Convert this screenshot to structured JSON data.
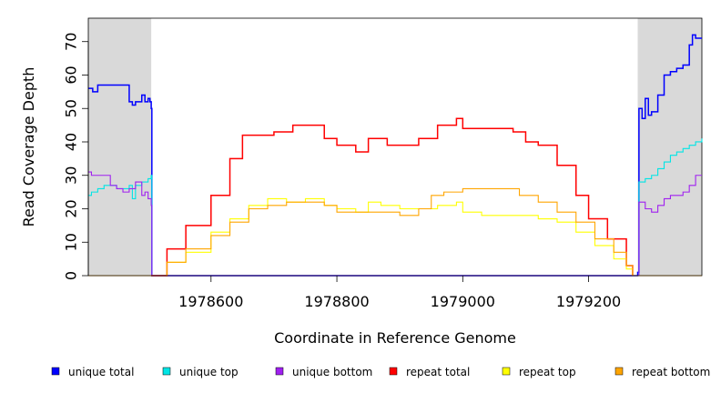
{
  "chart_data": {
    "type": "line",
    "xlabel": "Coordinate in Reference Genome",
    "ylabel": "Read Coverage Depth",
    "xlim": [
      1978405,
      1979380
    ],
    "ylim": [
      0,
      77
    ],
    "x_ticks": [
      1978600,
      1978800,
      1979000,
      1979200
    ],
    "x_tick_labels": [
      "1978600",
      "1978800",
      "1979000",
      "1979200"
    ],
    "y_ticks": [
      0,
      10,
      20,
      30,
      40,
      50,
      60,
      70
    ],
    "y_tick_labels": [
      "0",
      "10",
      "20",
      "30",
      "40",
      "50",
      "60",
      "70"
    ],
    "shaded_regions": [
      [
        1978405,
        1978505
      ],
      [
        1979278,
        1979380
      ]
    ],
    "shade_color": "#d9d9d9",
    "legend_position": "bottom",
    "series": [
      {
        "name": "unique total",
        "color": "#0000ff",
        "x": [
          1978405,
          1978412,
          1978420,
          1978440,
          1978460,
          1978470,
          1978475,
          1978480,
          1978490,
          1978495,
          1978500,
          1978503,
          1978505,
          1978506,
          1979270,
          1979278,
          1979280,
          1979285,
          1979290,
          1979295,
          1979300,
          1979310,
          1979320,
          1979330,
          1979340,
          1979350,
          1979360,
          1979365,
          1979370,
          1979380
        ],
        "y": [
          56,
          55,
          57,
          57,
          57,
          52,
          51,
          52,
          54,
          52,
          53,
          52,
          50,
          0,
          0,
          1,
          50,
          47,
          53,
          48,
          49,
          54,
          60,
          61,
          62,
          63,
          69,
          72,
          71,
          71
        ]
      },
      {
        "name": "unique top",
        "color": "#00e5e5",
        "x": [
          1978405,
          1978410,
          1978420,
          1978430,
          1978440,
          1978450,
          1978460,
          1978470,
          1978475,
          1978480,
          1978490,
          1978500,
          1978505,
          1978506,
          1979270,
          1979278,
          1979280,
          1979290,
          1979300,
          1979310,
          1979320,
          1979330,
          1979340,
          1979350,
          1979360,
          1979370,
          1979380
        ],
        "y": [
          24,
          25,
          26,
          27,
          27,
          26,
          26,
          27,
          23,
          27,
          28,
          29,
          30,
          0,
          0,
          0,
          28,
          29,
          30,
          32,
          34,
          36,
          37,
          38,
          39,
          40,
          41
        ]
      },
      {
        "name": "unique bottom",
        "color": "#a020f0",
        "x": [
          1978405,
          1978410,
          1978420,
          1978430,
          1978440,
          1978450,
          1978460,
          1978470,
          1978480,
          1978490,
          1978495,
          1978500,
          1978505,
          1978506,
          1979270,
          1979278,
          1979280,
          1979290,
          1979300,
          1979310,
          1979320,
          1979330,
          1979340,
          1979350,
          1979360,
          1979370,
          1979380
        ],
        "y": [
          31,
          30,
          30,
          30,
          27,
          26,
          25,
          26,
          28,
          24,
          25,
          23,
          21,
          0,
          0,
          0,
          22,
          20,
          19,
          21,
          23,
          24,
          24,
          25,
          27,
          30,
          30
        ]
      },
      {
        "name": "repeat total",
        "color": "#ff0000",
        "x": [
          1978505,
          1978530,
          1978560,
          1978600,
          1978630,
          1978650,
          1978700,
          1978730,
          1978760,
          1978780,
          1978800,
          1978820,
          1978830,
          1978850,
          1978880,
          1978900,
          1978930,
          1978960,
          1978990,
          1979000,
          1979030,
          1979060,
          1979080,
          1979100,
          1979120,
          1979150,
          1979180,
          1979200,
          1979230,
          1979260,
          1979270
        ],
        "y": [
          0,
          8,
          15,
          24,
          35,
          42,
          43,
          45,
          45,
          41,
          39,
          39,
          37,
          41,
          39,
          39,
          41,
          45,
          47,
          44,
          44,
          44,
          43,
          40,
          39,
          33,
          24,
          17,
          11,
          3,
          0
        ]
      },
      {
        "name": "repeat top",
        "color": "#ffff00",
        "x": [
          1978505,
          1978530,
          1978560,
          1978600,
          1978630,
          1978660,
          1978690,
          1978720,
          1978750,
          1978780,
          1978800,
          1978830,
          1978850,
          1978870,
          1978900,
          1978930,
          1978960,
          1978990,
          1979000,
          1979030,
          1979060,
          1979090,
          1979120,
          1979150,
          1979180,
          1979210,
          1979240,
          1979260,
          1979270
        ],
        "y": [
          0,
          4,
          7,
          13,
          17,
          21,
          23,
          22,
          23,
          21,
          20,
          19,
          22,
          21,
          20,
          20,
          21,
          22,
          19,
          18,
          18,
          18,
          17,
          16,
          13,
          9,
          5,
          2,
          0
        ]
      },
      {
        "name": "repeat bottom",
        "color": "#ffa500",
        "x": [
          1978405,
          1978505,
          1978530,
          1978560,
          1978600,
          1978630,
          1978660,
          1978690,
          1978720,
          1978750,
          1978780,
          1978800,
          1978830,
          1978860,
          1978900,
          1978930,
          1978950,
          1978970,
          1979000,
          1979030,
          1979060,
          1979090,
          1979120,
          1979150,
          1979180,
          1979210,
          1979240,
          1979260,
          1979270,
          1979380
        ],
        "y": [
          0,
          0,
          4,
          8,
          12,
          16,
          20,
          21,
          22,
          22,
          21,
          19,
          19,
          19,
          18,
          20,
          24,
          25,
          26,
          26,
          26,
          24,
          22,
          19,
          16,
          11,
          7,
          3,
          0,
          0
        ]
      }
    ]
  }
}
